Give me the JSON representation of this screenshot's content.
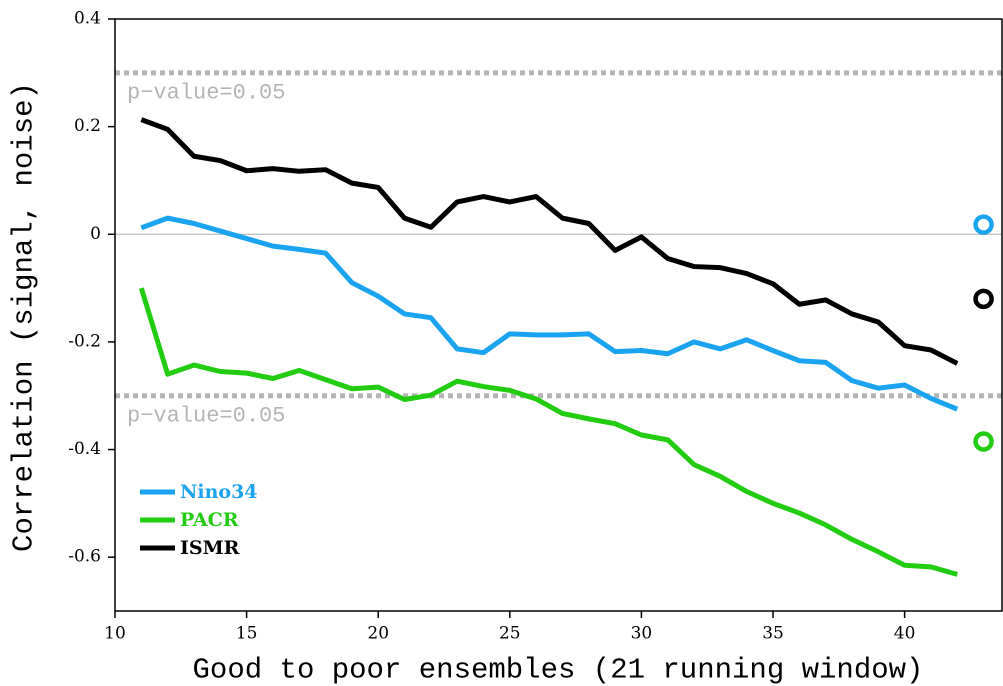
{
  "chart_data": {
    "type": "line",
    "x_label": "Good to poor ensembles (21 running window)",
    "y_label": "Correlation (signal, noise)",
    "x": [
      11,
      12,
      13,
      14,
      15,
      16,
      17,
      18,
      19,
      20,
      21,
      22,
      23,
      24,
      25,
      26,
      27,
      28,
      29,
      30,
      31,
      32,
      33,
      34,
      35,
      36,
      37,
      38,
      39,
      40,
      41,
      42
    ],
    "series": [
      {
        "name": "Nino34",
        "color": "#1aa3f0",
        "values": [
          0.012,
          0.03,
          0.02,
          0.006,
          -0.008,
          -0.022,
          -0.028,
          -0.035,
          -0.09,
          -0.115,
          -0.148,
          -0.155,
          -0.213,
          -0.22,
          -0.185,
          -0.187,
          -0.187,
          -0.185,
          -0.218,
          -0.216,
          -0.222,
          -0.2,
          -0.213,
          -0.196,
          -0.216,
          -0.235,
          -0.238,
          -0.272,
          -0.286,
          -0.28,
          -0.305,
          -0.325
        ],
        "marker": {
          "x": 43,
          "y": 0.018
        }
      },
      {
        "name": "PACR",
        "color": "#22cc11",
        "values": [
          -0.1,
          -0.26,
          -0.243,
          -0.255,
          -0.258,
          -0.268,
          -0.253,
          -0.27,
          -0.287,
          -0.284,
          -0.307,
          -0.299,
          -0.273,
          -0.283,
          -0.29,
          -0.306,
          -0.333,
          -0.343,
          -0.352,
          -0.373,
          -0.382,
          -0.428,
          -0.45,
          -0.478,
          -0.5,
          -0.518,
          -0.54,
          -0.567,
          -0.59,
          -0.615,
          -0.618,
          -0.632
        ],
        "marker": {
          "x": 43,
          "y": -0.385
        }
      },
      {
        "name": "ISMR",
        "color": "#000000",
        "values": [
          0.213,
          0.195,
          0.145,
          0.137,
          0.118,
          0.122,
          0.117,
          0.12,
          0.095,
          0.087,
          0.03,
          0.013,
          0.06,
          0.07,
          0.06,
          0.07,
          0.03,
          0.02,
          -0.03,
          -0.005,
          -0.045,
          -0.06,
          -0.062,
          -0.073,
          -0.092,
          -0.13,
          -0.122,
          -0.148,
          -0.163,
          -0.207,
          -0.215,
          -0.24
        ],
        "marker": {
          "x": 43,
          "y": -0.12
        }
      }
    ],
    "reference_lines": [
      {
        "value": 0.3,
        "label": "p−value=0.05"
      },
      {
        "value": -0.3,
        "label": "p−value=0.05"
      }
    ],
    "zero_line": 0,
    "xlim": [
      10,
      43.7
    ],
    "ylim": [
      -0.7,
      0.4
    ],
    "xticks": [
      10,
      15,
      20,
      25,
      30,
      35,
      40
    ],
    "yticks": [
      -0.6,
      -0.4,
      -0.2,
      0,
      0.2,
      0.4
    ],
    "legend": "lower left"
  }
}
